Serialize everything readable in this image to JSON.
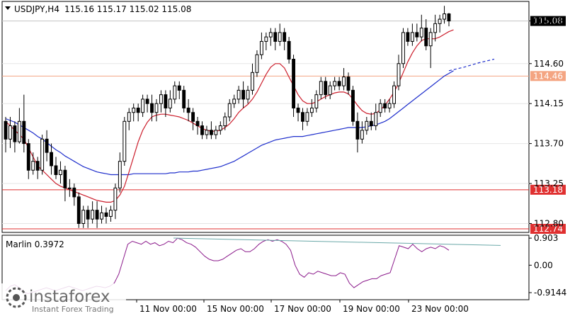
{
  "chart_data": {
    "type": "candlestick",
    "header": {
      "symbol": "USDJPY,H4",
      "ohlc": "115.16 115.17 115.02 115.08"
    },
    "price_axis": {
      "ticks": [
        "115.08",
        "114.60",
        "114.15",
        "113.70",
        "113.25",
        "112.80"
      ],
      "ylim": [
        112.7,
        115.3
      ]
    },
    "x_axis": {
      "ticks": [
        "11 Nov 00:00",
        "15 Nov 00:00",
        "17 Nov 00:00",
        "19 Nov 00:00",
        "23 Nov 00:00"
      ]
    },
    "levels": [
      {
        "value": 114.46,
        "label": "114.46",
        "color": "#f4a582"
      },
      {
        "value": 113.18,
        "label": "113.18",
        "color": "#e03030"
      },
      {
        "value": 112.74,
        "label": "112.74",
        "color": "#e03030"
      }
    ],
    "current_price": {
      "value": 115.08,
      "label": "115.08"
    },
    "candles": [
      [
        113.95,
        113.75,
        114.0,
        113.6
      ],
      [
        113.75,
        113.9,
        114.0,
        113.65
      ],
      [
        113.9,
        113.72,
        113.95,
        113.6
      ],
      [
        113.72,
        113.95,
        114.1,
        113.7
      ],
      [
        113.95,
        113.7,
        114.25,
        113.6
      ],
      [
        113.7,
        113.4,
        113.75,
        113.3
      ],
      [
        113.4,
        113.5,
        113.6,
        113.35
      ],
      [
        113.5,
        113.4,
        113.55,
        113.3
      ],
      [
        113.4,
        113.75,
        113.8,
        113.35
      ],
      [
        113.75,
        113.6,
        113.85,
        113.5
      ],
      [
        113.6,
        113.45,
        113.7,
        113.35
      ],
      [
        113.45,
        113.35,
        113.55,
        113.3
      ],
      [
        113.35,
        113.4,
        113.5,
        113.25
      ],
      [
        113.4,
        113.2,
        113.45,
        113.05
      ],
      [
        113.2,
        113.2,
        113.3,
        113.1
      ],
      [
        113.2,
        113.1,
        113.25,
        113.0
      ],
      [
        113.1,
        112.8,
        113.15,
        112.75
      ],
      [
        112.8,
        112.95,
        113.0,
        112.75
      ],
      [
        112.95,
        112.85,
        113.0,
        112.75
      ],
      [
        112.85,
        112.95,
        113.05,
        112.8
      ],
      [
        112.95,
        112.85,
        113.05,
        112.75
      ],
      [
        112.85,
        112.92,
        113.0,
        112.8
      ],
      [
        112.92,
        112.88,
        112.98,
        112.8
      ],
      [
        112.88,
        112.95,
        113.0,
        112.82
      ],
      [
        112.95,
        113.2,
        113.25,
        112.85
      ],
      [
        113.2,
        113.5,
        113.6,
        113.15
      ],
      [
        113.5,
        113.95,
        114.0,
        113.45
      ],
      [
        113.95,
        114.05,
        114.1,
        113.85
      ],
      [
        114.05,
        114.1,
        114.15,
        113.95
      ],
      [
        114.1,
        114.05,
        114.15,
        113.95
      ],
      [
        114.05,
        114.2,
        114.25,
        114.0
      ],
      [
        114.2,
        114.15,
        114.25,
        114.05
      ],
      [
        114.15,
        114.05,
        114.25,
        113.95
      ],
      [
        114.05,
        114.15,
        114.2,
        113.95
      ],
      [
        114.15,
        114.25,
        114.3,
        114.05
      ],
      [
        114.25,
        114.1,
        114.3,
        114.0
      ],
      [
        114.1,
        114.2,
        114.3,
        114.05
      ],
      [
        114.2,
        114.35,
        114.4,
        114.15
      ],
      [
        114.35,
        114.3,
        114.4,
        114.2
      ],
      [
        114.3,
        114.1,
        114.35,
        114.05
      ],
      [
        114.1,
        114.05,
        114.2,
        113.95
      ],
      [
        114.05,
        113.95,
        114.1,
        113.85
      ],
      [
        113.95,
        113.9,
        114.0,
        113.8
      ],
      [
        113.9,
        113.8,
        113.95,
        113.75
      ],
      [
        113.8,
        113.85,
        113.9,
        113.75
      ],
      [
        113.85,
        113.8,
        113.95,
        113.75
      ],
      [
        113.8,
        113.85,
        113.9,
        113.75
      ],
      [
        113.85,
        113.9,
        113.95,
        113.8
      ],
      [
        113.9,
        114.0,
        114.05,
        113.85
      ],
      [
        114.0,
        114.15,
        114.2,
        113.95
      ],
      [
        114.15,
        114.2,
        114.25,
        114.1
      ],
      [
        114.2,
        114.3,
        114.35,
        114.15
      ],
      [
        114.3,
        114.2,
        114.4,
        114.1
      ],
      [
        114.2,
        114.3,
        114.35,
        114.15
      ],
      [
        114.3,
        114.5,
        114.6,
        114.25
      ],
      [
        114.5,
        114.7,
        114.75,
        114.45
      ],
      [
        114.7,
        114.85,
        114.95,
        114.65
      ],
      [
        114.85,
        114.9,
        114.95,
        114.75
      ],
      [
        114.9,
        114.95,
        115.0,
        114.8
      ],
      [
        114.95,
        114.85,
        115.0,
        114.75
      ],
      [
        114.85,
        114.95,
        115.05,
        114.8
      ],
      [
        114.95,
        114.85,
        115.0,
        114.75
      ],
      [
        114.85,
        114.65,
        114.9,
        114.6
      ],
      [
        114.65,
        114.1,
        114.7,
        114.0
      ],
      [
        114.1,
        114.05,
        114.15,
        113.95
      ],
      [
        114.05,
        113.95,
        114.1,
        113.85
      ],
      [
        113.95,
        114.05,
        114.1,
        113.9
      ],
      [
        114.05,
        114.1,
        114.2,
        114.0
      ],
      [
        114.1,
        114.25,
        114.3,
        114.05
      ],
      [
        114.25,
        114.4,
        114.45,
        114.2
      ],
      [
        114.4,
        114.25,
        114.45,
        114.2
      ],
      [
        114.25,
        114.35,
        114.4,
        114.2
      ],
      [
        114.35,
        114.4,
        114.45,
        114.3
      ],
      [
        114.4,
        114.35,
        114.45,
        114.3
      ],
      [
        114.35,
        114.45,
        114.55,
        114.3
      ],
      [
        114.45,
        114.3,
        114.5,
        114.25
      ],
      [
        114.3,
        113.95,
        114.35,
        113.9
      ],
      [
        113.95,
        113.75,
        114.05,
        113.6
      ],
      [
        113.75,
        113.85,
        113.95,
        113.7
      ],
      [
        113.85,
        113.95,
        114.0,
        113.8
      ],
      [
        113.95,
        113.9,
        114.05,
        113.85
      ],
      [
        113.9,
        114.05,
        114.15,
        113.85
      ],
      [
        114.05,
        114.15,
        114.2,
        114.0
      ],
      [
        114.15,
        114.1,
        114.2,
        114.05
      ],
      [
        114.1,
        114.15,
        114.2,
        114.05
      ],
      [
        114.15,
        114.35,
        114.4,
        114.1
      ],
      [
        114.35,
        114.6,
        114.7,
        114.3
      ],
      [
        114.6,
        114.95,
        115.0,
        114.55
      ],
      [
        114.95,
        114.85,
        115.0,
        114.8
      ],
      [
        114.85,
        114.95,
        115.05,
        114.8
      ],
      [
        114.95,
        114.9,
        115.05,
        114.85
      ],
      [
        114.9,
        115.0,
        115.15,
        114.85
      ],
      [
        115.0,
        114.8,
        115.1,
        114.75
      ],
      [
        114.8,
        114.95,
        115.0,
        114.55
      ],
      [
        114.95,
        115.05,
        115.15,
        114.85
      ],
      [
        115.05,
        115.1,
        115.15,
        114.95
      ],
      [
        115.1,
        115.16,
        115.25,
        115.05
      ],
      [
        115.16,
        115.08,
        115.17,
        115.02
      ]
    ],
    "fast_ma": {
      "name": "",
      "color": "#cc1f2d",
      "values": [
        113.95,
        113.9,
        113.85,
        113.8,
        113.75,
        113.65,
        113.55,
        113.45,
        113.4,
        113.35,
        113.3,
        113.25,
        113.22,
        113.2,
        113.18,
        113.16,
        113.14,
        113.12,
        113.1,
        113.08,
        113.06,
        113.05,
        113.04,
        113.04,
        113.06,
        113.12,
        113.22,
        113.38,
        113.55,
        113.72,
        113.85,
        113.94,
        114.0,
        114.02,
        114.03,
        114.03,
        114.02,
        114.01,
        114.0,
        113.98,
        113.96,
        113.93,
        113.9,
        113.87,
        113.85,
        113.84,
        113.84,
        113.85,
        113.88,
        113.92,
        113.98,
        114.05,
        114.1,
        114.14,
        114.2,
        114.28,
        114.38,
        114.48,
        114.56,
        114.6,
        114.6,
        114.55,
        114.45,
        114.35,
        114.25,
        114.18,
        114.15,
        114.15,
        114.17,
        114.2,
        114.23,
        114.25,
        114.27,
        114.28,
        114.28,
        114.26,
        114.2,
        114.13,
        114.07,
        114.04,
        114.03,
        114.04,
        114.08,
        114.13,
        114.2,
        114.28,
        114.38,
        114.5,
        114.62,
        114.72,
        114.8,
        114.86,
        114.88,
        114.88,
        114.88,
        114.9,
        114.93,
        114.96,
        114.98
      ]
    },
    "slow_ma": {
      "name": "",
      "color": "#1f2fcc",
      "values": [
        113.98,
        113.96,
        113.94,
        113.91,
        113.88,
        113.85,
        113.82,
        113.78,
        113.75,
        113.71,
        113.67,
        113.63,
        113.6,
        113.56,
        113.53,
        113.5,
        113.47,
        113.44,
        113.42,
        113.4,
        113.38,
        113.37,
        113.36,
        113.35,
        113.35,
        113.35,
        113.35,
        113.35,
        113.36,
        113.36,
        113.36,
        113.36,
        113.36,
        113.36,
        113.36,
        113.36,
        113.37,
        113.37,
        113.38,
        113.38,
        113.38,
        113.39,
        113.39,
        113.4,
        113.41,
        113.42,
        113.43,
        113.44,
        113.46,
        113.48,
        113.5,
        113.53,
        113.56,
        113.59,
        113.62,
        113.65,
        113.68,
        113.7,
        113.72,
        113.74,
        113.75,
        113.76,
        113.77,
        113.78,
        113.78,
        113.78,
        113.79,
        113.8,
        113.81,
        113.82,
        113.83,
        113.84,
        113.85,
        113.86,
        113.87,
        113.88,
        113.88,
        113.88,
        113.88,
        113.89,
        113.9,
        113.91,
        113.93,
        113.95,
        113.98,
        114.02,
        114.06,
        114.1,
        114.14,
        114.18,
        114.22,
        114.26,
        114.3,
        114.34,
        114.38,
        114.42,
        114.46,
        114.49,
        114.52
      ]
    },
    "slow_ma_projection": {
      "color": "#1f2fcc",
      "values": [
        114.52,
        114.56,
        114.61,
        114.65
      ]
    },
    "oscillator": {
      "name": "Marlin 0.3972",
      "ticks": [
        "0.903",
        "0.00",
        "-0.9144"
      ],
      "ylim": [
        -1.15,
        1.0
      ],
      "color": "#8b1a8b",
      "values": [
        -0.85,
        -0.7,
        -0.65,
        -0.75,
        -0.9,
        -0.95,
        -0.9,
        -0.85,
        -0.8,
        -0.75,
        -0.8,
        -0.85,
        -0.8,
        -0.75,
        -0.7,
        -0.75,
        -0.8,
        -0.85,
        -0.8,
        -0.75,
        -0.7,
        -0.72,
        -0.75,
        -0.7,
        -0.6,
        -0.3,
        0.2,
        0.7,
        0.8,
        0.75,
        0.7,
        0.8,
        0.7,
        0.75,
        0.65,
        0.7,
        0.8,
        0.75,
        0.9,
        0.85,
        0.75,
        0.7,
        0.6,
        0.45,
        0.3,
        0.2,
        0.15,
        0.15,
        0.2,
        0.3,
        0.4,
        0.5,
        0.55,
        0.45,
        0.45,
        0.55,
        0.7,
        0.8,
        0.85,
        0.8,
        0.85,
        0.8,
        0.7,
        0.5,
        0.0,
        -0.3,
        -0.4,
        -0.25,
        -0.3,
        -0.2,
        -0.25,
        -0.3,
        -0.35,
        -0.35,
        -0.25,
        -0.3,
        -0.6,
        -0.75,
        -0.65,
        -0.55,
        -0.5,
        -0.45,
        -0.45,
        -0.35,
        -0.3,
        -0.25,
        0.2,
        0.65,
        0.6,
        0.55,
        0.7,
        0.55,
        0.45,
        0.55,
        0.6,
        0.55,
        0.65,
        0.6,
        0.5
      ],
      "trendline": {
        "color": "#6aa8a8",
        "values": [
          0.905,
          0.66
        ]
      }
    }
  },
  "watermark": {
    "brand": "instaforex",
    "tagline": "Instant Forex Trading"
  }
}
